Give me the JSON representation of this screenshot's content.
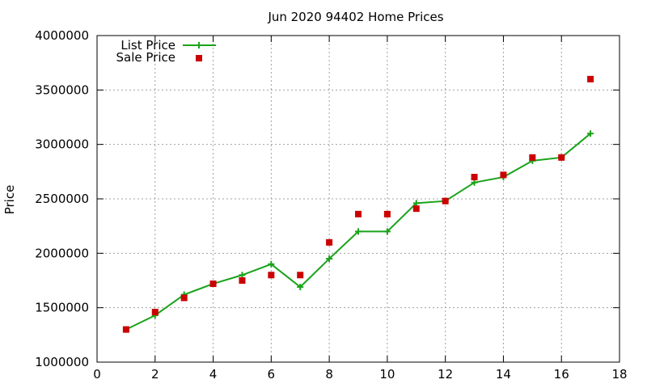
{
  "chart_data": {
    "type": "line",
    "title": "Jun 2020 94402 Home Prices",
    "xlabel": "",
    "ylabel": "Price",
    "xlim": [
      0,
      18
    ],
    "ylim": [
      1000000,
      4000000
    ],
    "xticks": [
      0,
      2,
      4,
      6,
      8,
      10,
      12,
      14,
      16,
      18
    ],
    "yticks": [
      1000000,
      1500000,
      2000000,
      2500000,
      3000000,
      3500000,
      4000000
    ],
    "grid": true,
    "legend_position": "top-left",
    "series": [
      {
        "name": "List Price",
        "style": "line-with-plus-markers",
        "color": "#1aa31a",
        "x": [
          1,
          2,
          3,
          4,
          5,
          6,
          7,
          8,
          9,
          10,
          11,
          12,
          13,
          14,
          15,
          16,
          17
        ],
        "y": [
          1300000,
          1430000,
          1620000,
          1720000,
          1800000,
          1900000,
          1690000,
          1950000,
          2200000,
          2200000,
          2460000,
          2480000,
          2650000,
          2700000,
          2850000,
          2880000,
          3100000
        ]
      },
      {
        "name": "Sale Price",
        "style": "square-markers",
        "color": "#cc0000",
        "x": [
          1,
          2,
          3,
          4,
          5,
          6,
          7,
          8,
          9,
          10,
          11,
          12,
          13,
          14,
          15,
          16,
          17
        ],
        "y": [
          1300000,
          1460000,
          1590000,
          1720000,
          1750000,
          1800000,
          1800000,
          2100000,
          2360000,
          2360000,
          2410000,
          2480000,
          2700000,
          2720000,
          2880000,
          2880000,
          3600000
        ]
      }
    ]
  }
}
